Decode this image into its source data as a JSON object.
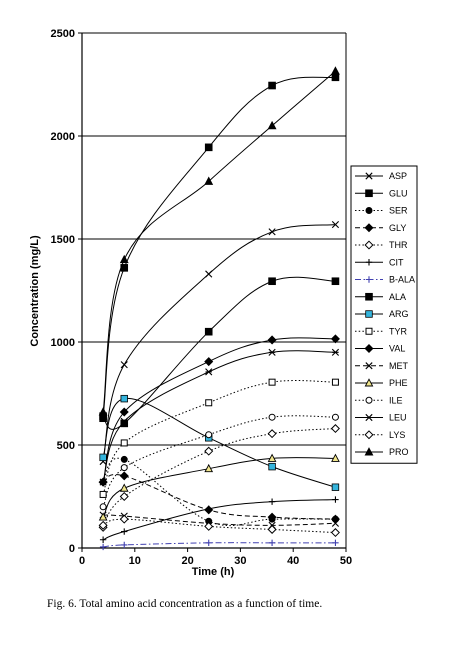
{
  "caption": "Fig. 6. Total amino acid concentration as a function of time.",
  "chart_data": {
    "type": "line",
    "xlabel": "Time (h)",
    "ylabel": "Concentration (mg/L)",
    "xlim": [
      0,
      50
    ],
    "ylim": [
      0,
      2500
    ],
    "x_ticks": [
      0,
      10,
      20,
      30,
      40,
      50
    ],
    "y_ticks": [
      0,
      500,
      1000,
      1500,
      2000,
      2500
    ],
    "grid": "horizontal major gridlines",
    "legend_position": "right",
    "x": [
      4,
      8,
      24,
      36,
      48
    ],
    "series": [
      {
        "name": "ASP",
        "values": [
          420,
          890,
          1330,
          1535,
          1570
        ],
        "marker": "x",
        "dash": "solid"
      },
      {
        "name": "GLU",
        "values": [
          640,
          1360,
          1945,
          2245,
          2285
        ],
        "marker": "square-filled",
        "dash": "solid"
      },
      {
        "name": "SER",
        "values": [
          320,
          430,
          130,
          140,
          140
        ],
        "marker": "circle-filled",
        "dash": "dotted"
      },
      {
        "name": "GLY",
        "values": [
          320,
          350,
          185,
          150,
          140
        ],
        "marker": "diamond-filled",
        "dash": "dashed"
      },
      {
        "name": "THR",
        "values": [
          100,
          250,
          470,
          555,
          580
        ],
        "marker": "diamond-open",
        "dash": "dotted"
      },
      {
        "name": "CIT",
        "values": [
          40,
          80,
          190,
          225,
          235
        ],
        "marker": "plus",
        "dash": "solid"
      },
      {
        "name": "B-ALA",
        "values": [
          5,
          15,
          25,
          25,
          25
        ],
        "marker": "plus",
        "dash": "dashdot",
        "color": "#4040b0"
      },
      {
        "name": "ALA",
        "values": [
          630,
          605,
          1050,
          1295,
          1295
        ],
        "marker": "square-filled",
        "dash": "solid"
      },
      {
        "name": "ARG",
        "values": [
          440,
          725,
          535,
          395,
          295
        ],
        "marker": "square-cyan",
        "dash": "solid"
      },
      {
        "name": "TYR",
        "values": [
          260,
          510,
          705,
          805,
          805
        ],
        "marker": "square-open",
        "dash": "dotted"
      },
      {
        "name": "VAL",
        "values": [
          320,
          660,
          905,
          1010,
          1015
        ],
        "marker": "diamond-filled",
        "dash": "solid"
      },
      {
        "name": "MET",
        "values": [
          160,
          155,
          120,
          110,
          120
        ],
        "marker": "x",
        "dash": "dashed"
      },
      {
        "name": "PHE",
        "values": [
          150,
          290,
          385,
          435,
          435
        ],
        "marker": "triangle-open",
        "dash": "solid"
      },
      {
        "name": "ILE",
        "values": [
          200,
          390,
          550,
          635,
          635
        ],
        "marker": "circle-open",
        "dash": "dotted"
      },
      {
        "name": "LEU",
        "values": [
          320,
          615,
          855,
          950,
          950
        ],
        "marker": "star",
        "dash": "solid"
      },
      {
        "name": "LYS",
        "values": [
          110,
          140,
          105,
          90,
          75
        ],
        "marker": "diamond-open",
        "dash": "dotted"
      },
      {
        "name": "PRO",
        "values": [
          660,
          1400,
          1780,
          2050,
          2315
        ],
        "marker": "triangle-filled",
        "dash": "solid"
      }
    ]
  }
}
